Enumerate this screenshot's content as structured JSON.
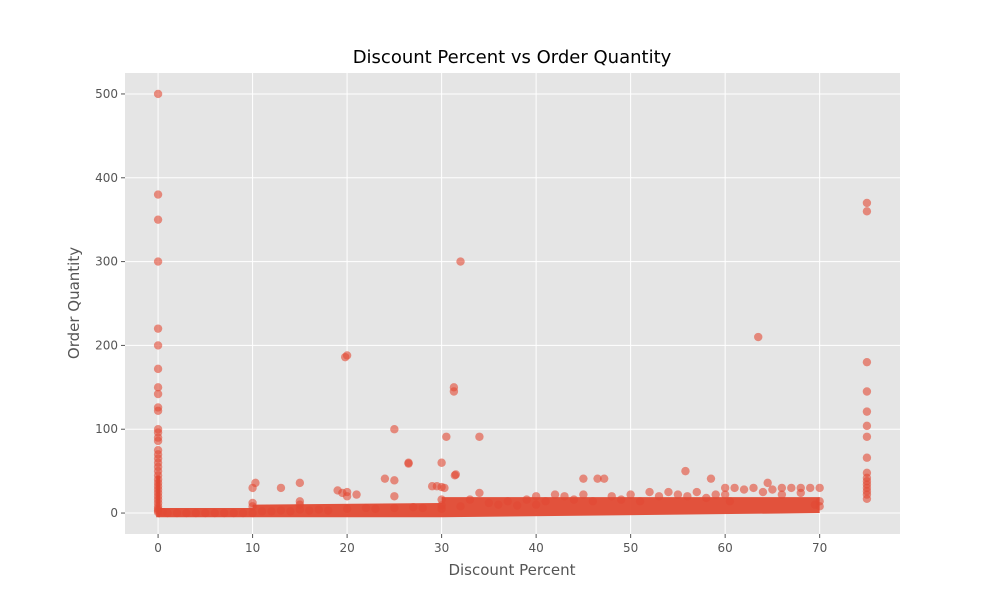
{
  "chart_data": {
    "type": "scatter",
    "title": "Discount Percent vs Order Quantity",
    "xlabel": "Discount Percent",
    "ylabel": "Order Quantity",
    "xlim": [
      -3.5,
      78.5
    ],
    "ylim": [
      -25,
      525
    ],
    "xticks": [
      0,
      10,
      20,
      30,
      40,
      50,
      60,
      70
    ],
    "yticks": [
      0,
      100,
      200,
      300,
      400,
      500
    ],
    "grid": true,
    "legend": "none",
    "point_color": "#E24A33",
    "background_color": "#E5E5E5",
    "series": [
      {
        "points": [
          [
            0,
            500
          ],
          [
            0,
            380
          ],
          [
            0,
            350
          ],
          [
            0,
            300
          ],
          [
            0,
            220
          ],
          [
            0,
            200
          ],
          [
            0,
            172
          ],
          [
            0,
            150
          ],
          [
            0,
            142
          ],
          [
            0,
            126
          ],
          [
            0,
            122
          ],
          [
            0,
            100
          ],
          [
            0,
            96
          ],
          [
            0,
            90
          ],
          [
            0,
            86
          ],
          [
            0,
            75
          ],
          [
            0,
            70
          ],
          [
            0,
            65
          ],
          [
            0,
            60
          ],
          [
            0,
            55
          ],
          [
            0,
            50
          ],
          [
            0,
            45
          ],
          [
            0,
            40
          ],
          [
            0,
            36
          ],
          [
            0,
            32
          ],
          [
            0,
            28
          ],
          [
            0,
            24
          ],
          [
            0,
            20
          ],
          [
            0,
            16
          ],
          [
            0,
            12
          ],
          [
            0,
            8
          ],
          [
            0,
            5
          ],
          [
            0,
            3
          ],
          [
            0,
            1
          ],
          [
            0.5,
            1
          ],
          [
            1,
            0
          ],
          [
            2,
            0
          ],
          [
            3,
            0
          ],
          [
            4,
            0
          ],
          [
            5,
            0
          ],
          [
            6,
            0
          ],
          [
            7,
            0
          ],
          [
            8,
            0
          ],
          [
            9,
            0
          ],
          [
            10,
            0
          ],
          [
            10,
            30
          ],
          [
            10.3,
            36
          ],
          [
            10,
            12
          ],
          [
            10,
            8
          ],
          [
            11,
            2
          ],
          [
            12,
            2
          ],
          [
            13,
            30
          ],
          [
            13,
            3
          ],
          [
            14,
            2
          ],
          [
            15,
            36
          ],
          [
            15,
            14
          ],
          [
            15,
            10
          ],
          [
            15,
            4
          ],
          [
            16,
            3
          ],
          [
            17,
            4
          ],
          [
            18,
            3
          ],
          [
            19,
            27
          ],
          [
            19.5,
            24
          ],
          [
            20,
            188
          ],
          [
            19.8,
            186
          ],
          [
            20,
            25
          ],
          [
            20,
            20
          ],
          [
            21,
            22
          ],
          [
            20,
            5
          ],
          [
            22,
            6
          ],
          [
            23,
            5
          ],
          [
            24,
            41
          ],
          [
            25,
            39
          ],
          [
            25,
            100
          ],
          [
            25,
            20
          ],
          [
            25,
            6
          ],
          [
            26.5,
            60
          ],
          [
            26.5,
            59
          ],
          [
            27,
            7
          ],
          [
            28,
            6
          ],
          [
            29,
            32
          ],
          [
            29.5,
            32
          ],
          [
            30,
            60
          ],
          [
            30.5,
            91
          ],
          [
            30,
            31
          ],
          [
            30.3,
            30
          ],
          [
            30,
            16
          ],
          [
            30,
            9
          ],
          [
            30,
            5
          ],
          [
            31.3,
            150
          ],
          [
            31.3,
            145
          ],
          [
            31.5,
            46
          ],
          [
            31.4,
            45
          ],
          [
            32,
            300
          ],
          [
            32,
            8
          ],
          [
            33,
            16
          ],
          [
            34,
            91
          ],
          [
            34,
            24
          ],
          [
            35,
            12
          ],
          [
            36,
            10
          ],
          [
            37,
            14
          ],
          [
            38,
            9
          ],
          [
            39,
            16
          ],
          [
            40,
            20
          ],
          [
            40,
            10
          ],
          [
            41,
            14
          ],
          [
            42,
            22
          ],
          [
            43,
            20
          ],
          [
            44,
            16
          ],
          [
            45,
            41
          ],
          [
            45,
            22
          ],
          [
            46,
            14
          ],
          [
            46.5,
            41
          ],
          [
            47.2,
            41
          ],
          [
            48,
            20
          ],
          [
            49,
            16
          ],
          [
            50,
            22
          ],
          [
            51,
            14
          ],
          [
            52,
            25
          ],
          [
            53,
            20
          ],
          [
            54,
            25
          ],
          [
            55,
            22
          ],
          [
            55.8,
            50
          ],
          [
            56,
            20
          ],
          [
            57,
            25
          ],
          [
            58,
            18
          ],
          [
            58.5,
            41
          ],
          [
            59,
            22
          ],
          [
            60,
            30
          ],
          [
            60,
            22
          ],
          [
            60.5,
            14
          ],
          [
            61,
            30
          ],
          [
            62,
            28
          ],
          [
            63,
            30
          ],
          [
            63.5,
            210
          ],
          [
            64,
            25
          ],
          [
            64.5,
            36
          ],
          [
            65,
            28
          ],
          [
            66,
            30
          ],
          [
            66,
            22
          ],
          [
            67,
            30
          ],
          [
            68,
            30
          ],
          [
            68,
            24
          ],
          [
            69,
            30
          ],
          [
            70,
            30
          ],
          [
            70,
            14
          ],
          [
            70,
            8
          ],
          [
            69.5,
            10
          ],
          [
            75,
            370
          ],
          [
            75,
            360
          ],
          [
            75,
            180
          ],
          [
            75,
            145
          ],
          [
            75,
            121
          ],
          [
            75,
            104
          ],
          [
            75,
            91
          ],
          [
            75,
            66
          ],
          [
            75,
            48
          ],
          [
            75,
            42
          ],
          [
            75,
            38
          ],
          [
            75,
            34
          ],
          [
            75,
            30
          ],
          [
            75,
            26
          ],
          [
            75,
            22
          ],
          [
            75,
            17
          ]
        ]
      }
    ]
  }
}
